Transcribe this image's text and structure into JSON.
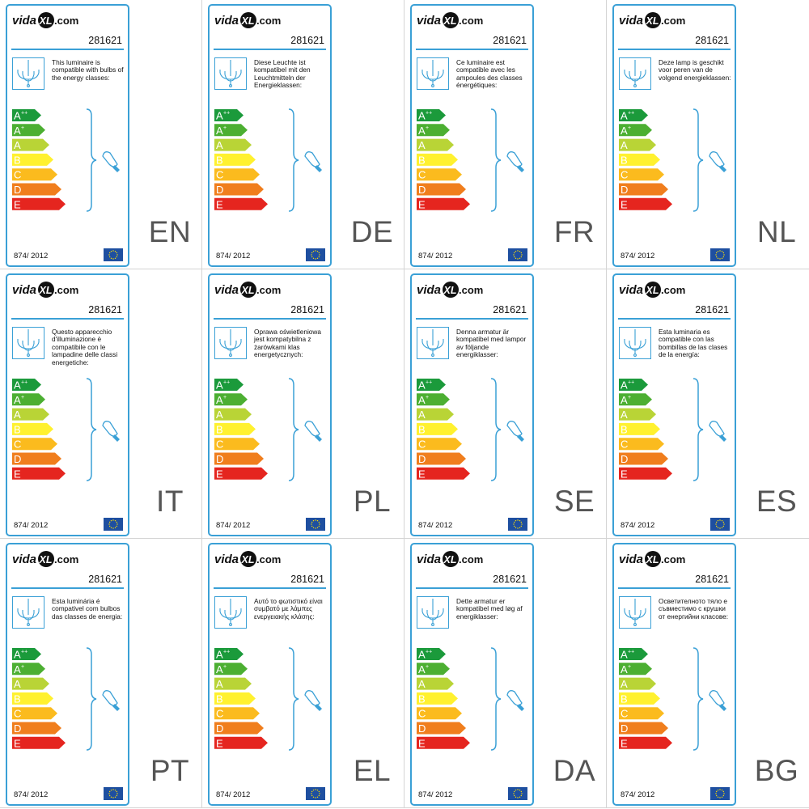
{
  "product_code": "281621",
  "regulation": "874/ 2012",
  "logo": {
    "left": "vida",
    "mark": "XL",
    "right": ".com"
  },
  "energy_classes": [
    {
      "letter": "A",
      "sup": "++",
      "color": "#1b9a3b"
    },
    {
      "letter": "A",
      "sup": "+",
      "color": "#4caf32"
    },
    {
      "letter": "A",
      "sup": "",
      "color": "#b9d436"
    },
    {
      "letter": "B",
      "sup": "",
      "color": "#fff12f"
    },
    {
      "letter": "C",
      "sup": "",
      "color": "#fbbb1e"
    },
    {
      "letter": "D",
      "sup": "",
      "color": "#f07e1d"
    },
    {
      "letter": "E",
      "sup": "",
      "color": "#e5251f"
    }
  ],
  "colors": {
    "frame": "#3aa0d6",
    "eu_flag": "#1e4fa0",
    "eu_stars": "#ffdd00"
  },
  "icons": [
    "chandelier-icon",
    "bulb-icon",
    "eu-flag-icon"
  ],
  "labels": [
    {
      "lang": "EN",
      "text": "This luminaire is compatible with bulbs of the energy classes:"
    },
    {
      "lang": "DE",
      "text": "Diese Leuchte ist kompatibel mit den Leuchtmitteln der Energieklassen:"
    },
    {
      "lang": "FR",
      "text": "Ce luminaire est compatible avec les ampoules des classes énergétiques:"
    },
    {
      "lang": "NL",
      "text": "Deze lamp is geschikt voor peren van de volgend energieklassen:"
    },
    {
      "lang": "IT",
      "text": "Questo apparecchio d'illuminazione è compatibile con le lampadine delle classi energetiche:"
    },
    {
      "lang": "PL",
      "text": "Oprawa oświetleniowa jest kompatybilna z żarówkami klas energetycznych:"
    },
    {
      "lang": "SE",
      "text": "Denna armatur är kompatibel med lampor av följande energiklasser:"
    },
    {
      "lang": "ES",
      "text": "Esta luminaria es compatible con las bombillas de las clases de la energía:"
    },
    {
      "lang": "PT",
      "text": "Esta luminária é compativel com bulbos das classes de energia:"
    },
    {
      "lang": "EL",
      "text": "Αυτό το φωτιστικό είναι συμβατό με λάμπες ενεργειακής κλάσης:"
    },
    {
      "lang": "DA",
      "text": "Dette armatur er kompatibel med løg af energiklasser:"
    },
    {
      "lang": "BG",
      "text": "Осветителното тяло е съвместимо с крушки от енергийни класове:"
    }
  ]
}
